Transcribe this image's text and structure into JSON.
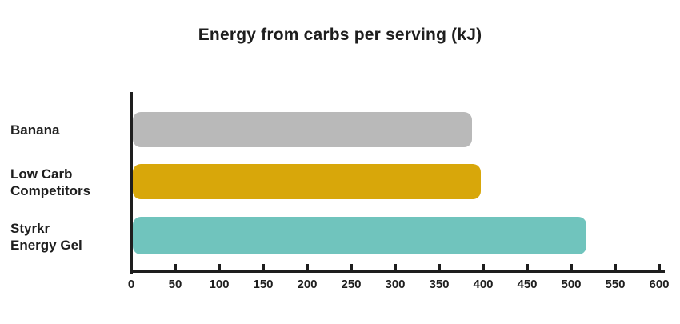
{
  "chart_data": {
    "type": "bar",
    "orientation": "horizontal",
    "title": "Energy from carbs per serving (kJ)",
    "categories": [
      "Banana",
      "Low Carb Competitors",
      "Styrkr Energy Gel"
    ],
    "category_label_lines": [
      [
        "Banana"
      ],
      [
        "Low Carb",
        "Competitors"
      ],
      [
        "Styrkr",
        "Energy Gel"
      ]
    ],
    "values": [
      385,
      395,
      515
    ],
    "bar_colors": [
      "#b9b9b9",
      "#d8a70a",
      "#70c4bd"
    ],
    "xlabel": "",
    "ylabel": "",
    "xlim": [
      0,
      600
    ],
    "x_ticks": [
      0,
      50,
      100,
      150,
      200,
      250,
      300,
      350,
      400,
      450,
      500,
      550,
      600
    ],
    "grid": false,
    "legend": false,
    "axis_color": "#1e1e1e",
    "text_color": "#1e1e1e",
    "background_color": "#ffffff"
  }
}
